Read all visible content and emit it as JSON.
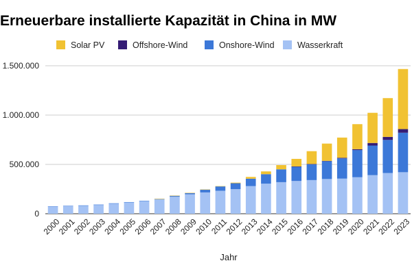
{
  "chart_data": {
    "type": "bar",
    "stacked": true,
    "title": "Erneuerbare installierte Kapazität in China in MW",
    "xlabel": "Jahr",
    "ylabel": "",
    "ylim": [
      0,
      1500000
    ],
    "yticks": [
      0,
      500000,
      1000000,
      1500000
    ],
    "ytick_labels": [
      "0",
      "500.000",
      "1.000.000",
      "1.500.000"
    ],
    "grid": true,
    "legend_position": "top",
    "categories": [
      "2000",
      "2001",
      "2002",
      "2003",
      "2004",
      "2005",
      "2006",
      "2007",
      "2008",
      "2009",
      "2010",
      "2011",
      "2012",
      "2013",
      "2014",
      "2015",
      "2016",
      "2017",
      "2018",
      "2019",
      "2020",
      "2021",
      "2022",
      "2023"
    ],
    "series": [
      {
        "name": "Wasserkraft",
        "color": "#a4c2f4",
        "values": [
          74000,
          80000,
          84000,
          92000,
          105000,
          117000,
          129000,
          145000,
          172000,
          197000,
          216000,
          233000,
          249000,
          280000,
          305000,
          320000,
          332000,
          341000,
          352000,
          356000,
          370000,
          391000,
          413000,
          421000
        ]
      },
      {
        "name": "Onshore-Wind",
        "color": "#3c78d8",
        "values": [
          300,
          400,
          500,
          600,
          800,
          1200,
          2500,
          5500,
          11000,
          14000,
          29000,
          44000,
          60000,
          75000,
          96000,
          130000,
          145000,
          160000,
          180000,
          205000,
          275000,
          300000,
          335000,
          400000
        ]
      },
      {
        "name": "Offshore-Wind",
        "color": "#351c75",
        "values": [
          0,
          0,
          0,
          0,
          0,
          0,
          0,
          0,
          0,
          0,
          0,
          0,
          0,
          0,
          0,
          0,
          2000,
          3000,
          4000,
          6000,
          9000,
          26000,
          31000,
          37000
        ]
      },
      {
        "name": "Solar PV",
        "color": "#f1c232",
        "values": [
          0,
          0,
          0,
          0,
          0,
          0,
          0,
          100,
          150,
          300,
          800,
          3000,
          6000,
          18000,
          28000,
          43000,
          77000,
          130000,
          175000,
          205000,
          254000,
          306000,
          393000,
          609000
        ]
      }
    ],
    "legend_order": [
      "Solar PV",
      "Offshore-Wind",
      "Onshore-Wind",
      "Wasserkraft"
    ]
  }
}
